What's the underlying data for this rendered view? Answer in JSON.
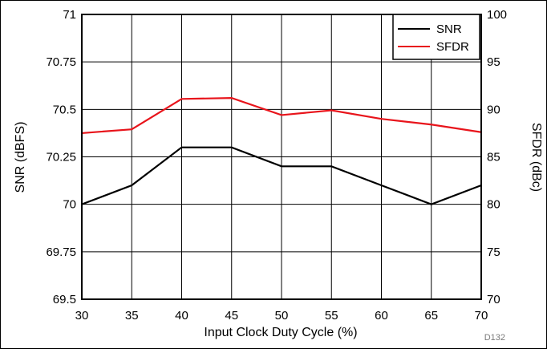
{
  "chart_data": {
    "type": "line",
    "title": "",
    "xlabel": "Input Clock Duty Cycle (%)",
    "ylabel_left": "SNR (dBFS)",
    "ylabel_right": "SFDR (dBc)",
    "figure_code": "D132",
    "x": [
      30,
      35,
      40,
      45,
      50,
      55,
      60,
      65,
      70
    ],
    "xlim": [
      30,
      70
    ],
    "ylim_left": [
      69.5,
      71
    ],
    "ylim_right": [
      70,
      100
    ],
    "x_ticks": [
      "30",
      "35",
      "40",
      "45",
      "50",
      "55",
      "60",
      "65",
      "70"
    ],
    "y_ticks_left": [
      "69.5",
      "69.75",
      "70",
      "70.25",
      "70.5",
      "70.75",
      "71"
    ],
    "y_ticks_right": [
      "70",
      "75",
      "80",
      "85",
      "90",
      "95",
      "100"
    ],
    "grid": true,
    "legend_position": "top-right",
    "series": [
      {
        "name": "SNR",
        "axis": "left",
        "color": "#000000",
        "values": [
          70.0,
          70.1,
          70.3,
          70.3,
          70.2,
          70.2,
          70.1,
          70.0,
          70.1
        ]
      },
      {
        "name": "SFDR",
        "axis": "right",
        "color": "#e8141b",
        "values": [
          87.5,
          87.9,
          91.1,
          91.2,
          89.4,
          89.9,
          89.0,
          88.4,
          87.6
        ]
      }
    ]
  }
}
